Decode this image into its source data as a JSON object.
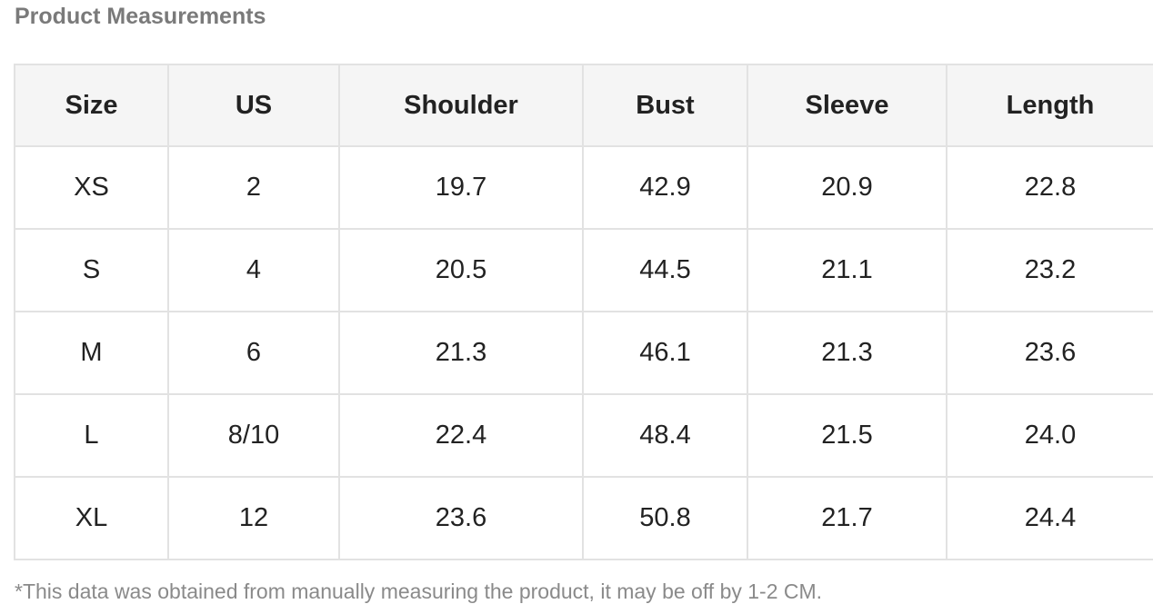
{
  "header": {
    "title": "Product Measurements"
  },
  "table": {
    "columns": [
      "Size",
      "US",
      "Shoulder",
      "Bust",
      "Sleeve",
      "Length"
    ],
    "rows": [
      [
        "XS",
        "2",
        "19.7",
        "42.9",
        "20.9",
        "22.8"
      ],
      [
        "S",
        "4",
        "20.5",
        "44.5",
        "21.1",
        "23.2"
      ],
      [
        "M",
        "6",
        "21.3",
        "46.1",
        "21.3",
        "23.6"
      ],
      [
        "L",
        "8/10",
        "22.4",
        "48.4",
        "21.5",
        "24.0"
      ],
      [
        "XL",
        "12",
        "23.6",
        "50.8",
        "21.7",
        "24.4"
      ]
    ]
  },
  "footnote": "*This data was obtained from manually measuring the product, it may be off by 1-2 CM."
}
